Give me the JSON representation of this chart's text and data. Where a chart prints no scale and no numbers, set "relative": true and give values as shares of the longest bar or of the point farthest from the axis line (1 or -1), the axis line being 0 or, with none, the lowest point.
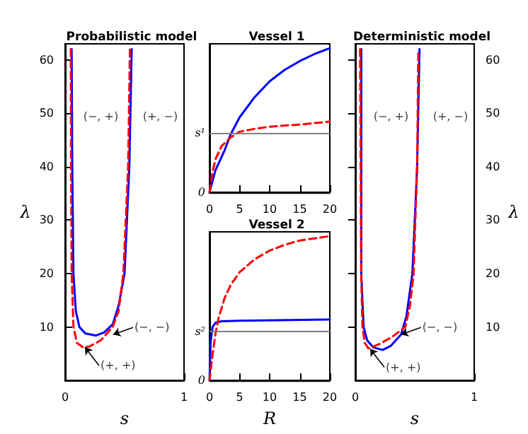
{
  "chart_data": [
    {
      "type": "line",
      "title": "Probabilistic model",
      "xlabel": "s",
      "ylabel": "λ",
      "xlim": [
        0,
        1
      ],
      "xticks": [
        0,
        1
      ],
      "ylim": [
        0,
        63
      ],
      "yticks": [
        10,
        20,
        30,
        40,
        50,
        60
      ],
      "series": [
        {
          "color": "#0000ff",
          "line_style": "solid",
          "x": [
            0.055,
            0.06,
            0.07,
            0.09,
            0.12,
            0.17,
            0.26,
            0.33,
            0.4,
            0.45,
            0.5,
            0.54,
            0.56
          ],
          "values": [
            62,
            40,
            20,
            13,
            10,
            8.8,
            8.4,
            9,
            10.5,
            14,
            20,
            40,
            62
          ]
        },
        {
          "color": "#ff0000",
          "line_style": "dashed",
          "x": [
            0.048,
            0.05,
            0.055,
            0.07,
            0.1,
            0.15,
            0.2,
            0.3,
            0.4,
            0.45,
            0.49,
            0.53,
            0.545
          ],
          "values": [
            62,
            40,
            20,
            10,
            7,
            6.2,
            6.3,
            7.5,
            10,
            13,
            20,
            40,
            62
          ]
        }
      ],
      "annotations": [
        "(−, +)",
        "(+, −)",
        {
          "text": "(−, −)",
          "x": 0.405,
          "y": 8.6
        },
        {
          "text": "(+, +)",
          "x": 0.167,
          "y": 6.2
        }
      ]
    },
    {
      "type": "line",
      "title": "Vessel 1",
      "relative": true,
      "xlim": [
        0,
        20
      ],
      "xticks": [
        0,
        5,
        10,
        15,
        20
      ],
      "series": [
        {
          "color": "#0000ff",
          "line_style": "solid",
          "x": [
            0,
            1,
            2.5,
            3.5,
            5,
            7.5,
            10,
            12.5,
            15,
            17.5,
            20
          ],
          "values": [
            0,
            0.154,
            0.29,
            0.4,
            0.52,
            0.66,
            0.77,
            0.85,
            0.91,
            0.96,
            1
          ]
        },
        {
          "color": "#ff0000",
          "line_style": "dashed",
          "x": [
            0,
            0.5,
            1,
            2,
            3.5,
            5,
            7.5,
            10,
            15,
            20
          ],
          "values": [
            0,
            0.14,
            0.23,
            0.32,
            0.38,
            0.42,
            0.44,
            0.455,
            0.47,
            0.49
          ]
        }
      ],
      "ref_lines": [
        {
          "axis": "y",
          "value": 0,
          "label": "0",
          "color": "#000000"
        },
        {
          "axis": "y",
          "value": 0.41,
          "label": "s¹",
          "color": "#808080"
        }
      ]
    },
    {
      "type": "line",
      "title": "Vessel 2",
      "xlabel": "R",
      "relative": true,
      "xlim": [
        0,
        20
      ],
      "xticks": [
        0,
        5,
        10,
        15,
        20
      ],
      "series": [
        {
          "color": "#0000ff",
          "line_style": "solid",
          "x": [
            0,
            0.2,
            0.5,
            1,
            2,
            5,
            20
          ],
          "values": [
            0,
            0.27,
            0.37,
            0.4,
            0.41,
            0.414,
            0.423
          ]
        },
        {
          "color": "#ff0000",
          "line_style": "dashed",
          "x": [
            0,
            0.5,
            1,
            1.5,
            2.5,
            3.5,
            5,
            7.5,
            10,
            12.5,
            15,
            17.5,
            20
          ],
          "values": [
            0,
            0.175,
            0.326,
            0.43,
            0.57,
            0.66,
            0.75,
            0.84,
            0.9,
            0.94,
            0.97,
            0.985,
            1
          ]
        }
      ],
      "ref_lines": [
        {
          "axis": "y",
          "value": 0,
          "label": "0",
          "color": "#000000"
        },
        {
          "axis": "y",
          "value": 0.34,
          "label": "s²",
          "color": "#808080"
        }
      ]
    },
    {
      "type": "line",
      "title": "Deterministic model",
      "xlabel": "s",
      "ylabel": "λ",
      "xlim": [
        0,
        1
      ],
      "xticks": [
        0,
        1
      ],
      "ylim": [
        0,
        63
      ],
      "yticks": [
        10,
        20,
        30,
        40,
        50,
        60
      ],
      "series": [
        {
          "color": "#0000ff",
          "line_style": "solid",
          "x": [
            0.05,
            0.05,
            0.07,
            0.1,
            0.15,
            0.23,
            0.3,
            0.385,
            0.43,
            0.48,
            0.52,
            0.54
          ],
          "values": [
            62,
            20,
            10,
            7.5,
            6.2,
            5.7,
            6.5,
            8.6,
            12,
            20,
            40,
            62
          ]
        },
        {
          "color": "#ff0000",
          "line_style": "dashed",
          "x": [
            0.04,
            0.05,
            0.06,
            0.08,
            0.11,
            0.2,
            0.3,
            0.42,
            0.46,
            0.49,
            0.52,
            0.53
          ],
          "values": [
            62,
            20,
            10,
            7,
            6,
            6.8,
            8,
            10,
            14,
            20,
            40,
            62
          ]
        }
      ],
      "annotations": [
        "(−, +)",
        "(+, −)",
        {
          "text": "(−, −)",
          "x": 0.385,
          "y": 8.6
        },
        {
          "text": "(+, +)",
          "x": 0.125,
          "y": 5.9
        }
      ]
    }
  ]
}
